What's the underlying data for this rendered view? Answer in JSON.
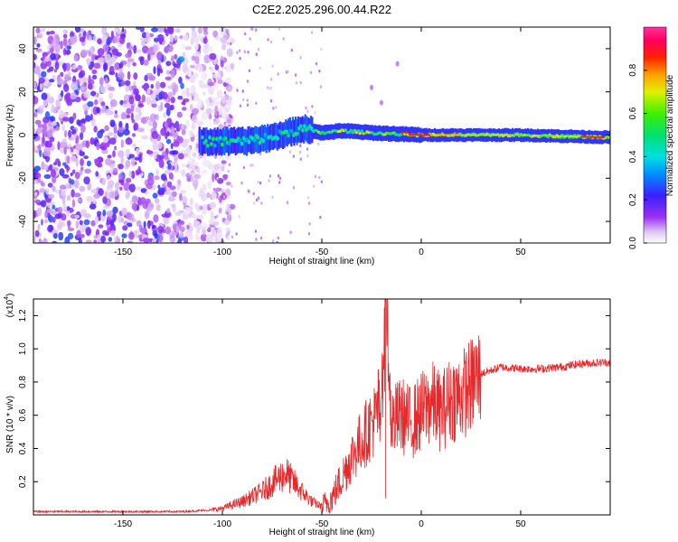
{
  "title": "C2E2.2025.296.00.44.R22",
  "chart_data": [
    {
      "type": "heatmap",
      "title": "C2E2.2025.296.00.44.R22",
      "xlabel": "Height of straight line (km)",
      "ylabel": "Frequency (Hz)",
      "xlim": [
        -195,
        95
      ],
      "ylim": [
        -50,
        50
      ],
      "xticks": [
        -150,
        -100,
        -50,
        0,
        50
      ],
      "xtick_labels": [
        "-150",
        "-100",
        "-50",
        "0",
        "50"
      ],
      "yticks": [
        -40,
        -20,
        0,
        20,
        40
      ],
      "ytick_labels": [
        "-40",
        "-20",
        "0",
        "20",
        "40"
      ],
      "colorbar": {
        "label": "Normalized spectral amplitude",
        "range": [
          0,
          1
        ],
        "ticks": [
          0,
          0.2,
          0.4,
          0.6,
          0.8
        ],
        "tick_labels": [
          "0.0",
          "0.2",
          "0.4",
          "0.6",
          "0.8"
        ],
        "colormap": "rainbow (white-purple-blue-cyan-green-yellow-red-magenta)"
      },
      "description_of_features": {
        "noise_region_x": [
          -195,
          -105
        ],
        "signal_track": [
          {
            "x": -110,
            "freq": -3
          },
          {
            "x": -90,
            "freq": -3
          },
          {
            "x": -75,
            "freq": -1
          },
          {
            "x": -60,
            "freq": 3
          },
          {
            "x": -50,
            "freq": 1
          },
          {
            "x": -40,
            "freq": 2
          },
          {
            "x": -25,
            "freq": 1
          },
          {
            "x": 0,
            "freq": 0
          },
          {
            "x": 50,
            "freq": 0
          },
          {
            "x": 90,
            "freq": -1
          }
        ]
      }
    },
    {
      "type": "line",
      "xlabel": "Height of straight line (km)",
      "ylabel": "SNR (10 * v/v)",
      "y_multiplier_label": "(x10",
      "y_multiplier_exp": "4",
      "xlim": [
        -195,
        95
      ],
      "ylim": [
        0,
        1.3
      ],
      "xticks": [
        -150,
        -100,
        -50,
        0,
        50
      ],
      "xtick_labels": [
        "-150",
        "-100",
        "-50",
        "0",
        "50"
      ],
      "yticks": [
        0.2,
        0.4,
        0.6,
        0.8,
        1.0,
        1.2
      ],
      "ytick_labels": [
        "0.2",
        "0.4",
        "0.6",
        "0.8",
        "1.0",
        "1.2"
      ],
      "color": "#e8282a",
      "x": [
        -195,
        -170,
        -140,
        -120,
        -105,
        -100,
        -90,
        -80,
        -72,
        -68,
        -60,
        -55,
        -50,
        -45,
        -40,
        -35,
        -30,
        -25,
        -20,
        -18,
        -15,
        -10,
        -5,
        0,
        5,
        10,
        15,
        20,
        25,
        30,
        40,
        50,
        60,
        70,
        80,
        95
      ],
      "y": [
        0.02,
        0.02,
        0.02,
        0.02,
        0.03,
        0.04,
        0.08,
        0.14,
        0.22,
        0.25,
        0.14,
        0.08,
        0.05,
        0.1,
        0.22,
        0.35,
        0.45,
        0.55,
        0.62,
        1.25,
        0.55,
        0.6,
        0.55,
        0.62,
        0.68,
        0.62,
        0.7,
        0.72,
        0.78,
        0.85,
        0.89,
        0.88,
        0.88,
        0.89,
        0.91,
        0.92
      ]
    }
  ]
}
